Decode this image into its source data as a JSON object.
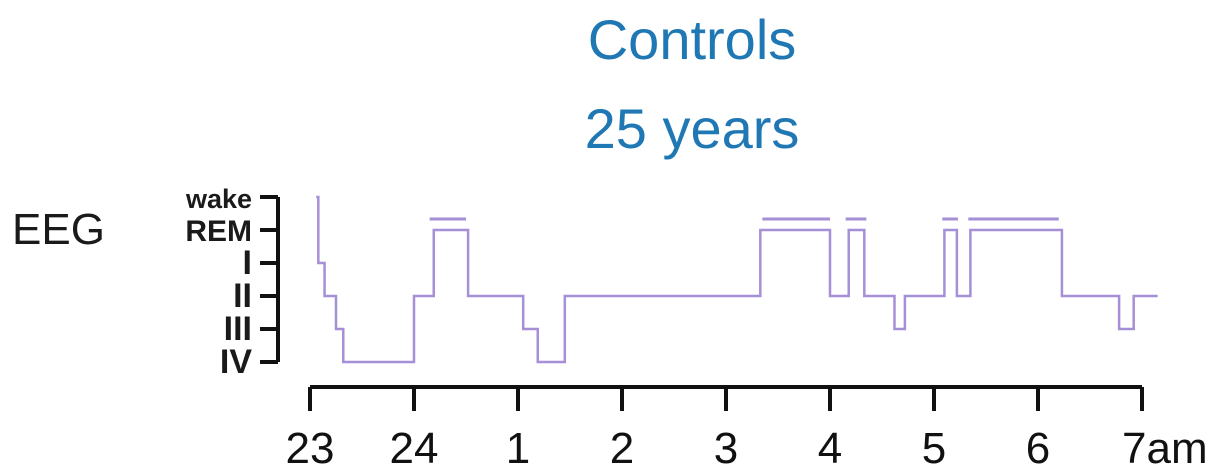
{
  "chart_data": {
    "type": "line",
    "title_lines": [
      "Controls",
      "25 years"
    ],
    "ylabel": "EEG",
    "stages": [
      "wake",
      "REM",
      "I",
      "II",
      "III",
      "IV"
    ],
    "stage_labels": [
      "wake",
      "REM",
      "I",
      "II",
      "III",
      "IV"
    ],
    "x_ticks": [
      23,
      24,
      25,
      26,
      27,
      28,
      29,
      30,
      31
    ],
    "x_tick_labels": [
      "23",
      "24",
      "1",
      "2",
      "3",
      "4",
      "5",
      "6",
      "7am"
    ],
    "xlim": [
      23,
      31.2
    ],
    "line_color": "#a58fd6",
    "title_color": "#1f78b4",
    "series": [
      {
        "x": [
          23.06,
          23.08,
          23.14,
          23.25,
          23.32,
          24.0,
          24.19,
          24.52,
          25.05,
          25.19,
          25.45,
          27.33,
          28.0,
          28.18,
          28.33,
          28.62,
          28.72,
          29.1,
          29.22,
          29.35,
          30.23,
          30.78,
          30.92,
          31.15
        ],
        "stage_index": [
          0,
          2,
          3,
          4,
          5,
          3,
          1,
          3,
          4,
          5,
          3,
          1,
          3,
          1,
          3,
          4,
          3,
          1,
          3,
          1,
          3,
          4,
          3,
          3
        ]
      }
    ],
    "rem_markers": [
      [
        24.15,
        24.5
      ],
      [
        27.35,
        28.0
      ],
      [
        28.15,
        28.35
      ],
      [
        29.08,
        29.23
      ],
      [
        29.33,
        30.2
      ]
    ]
  }
}
